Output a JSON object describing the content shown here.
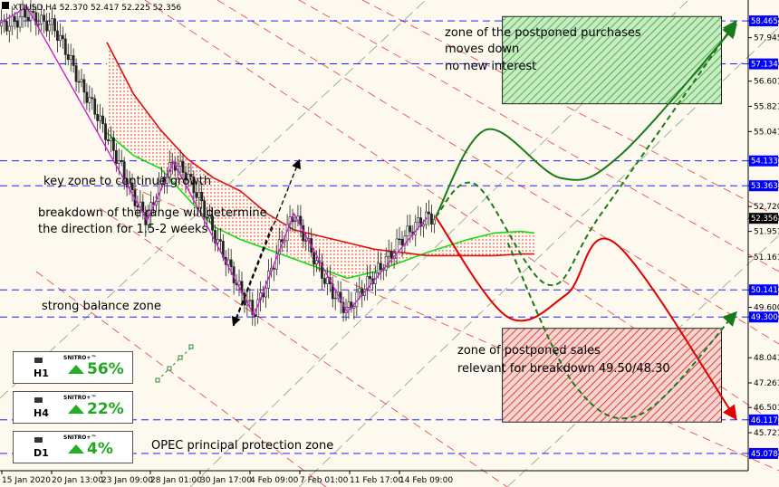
{
  "header": {
    "symbol_info": "XTIUSD,H4  52.370 52.417 52.225 52.356"
  },
  "chart_data": {
    "type": "candlestick",
    "symbol": "XTIUSD",
    "timeframe": "H4",
    "ohlc": {
      "open": 52.37,
      "high": 52.417,
      "low": 52.225,
      "close": 52.356
    },
    "current_price": 52.356,
    "ylim": [
      44.6,
      59.0
    ],
    "y_ticks": [
      "58.465",
      "57.945",
      "57.134",
      "56.601",
      "55.821",
      "55.041",
      "54.133",
      "53.363",
      "52.720",
      "52.356",
      "51.951",
      "51.161",
      "50.141",
      "49.600",
      "49.300",
      "48.041",
      "47.261",
      "46.501",
      "46.117",
      "45.721",
      "45.078"
    ],
    "highlighted_levels": [
      {
        "price": 58.465,
        "label": "58.465",
        "color": "#0000ff"
      },
      {
        "price": 57.134,
        "label": "57.134",
        "color": "#0000ff"
      },
      {
        "price": 54.133,
        "label": "54.133",
        "color": "#0000ff"
      },
      {
        "price": 53.363,
        "label": "53.363",
        "color": "#0000ff"
      },
      {
        "price": 52.356,
        "label": "52.356",
        "color": "#000000"
      },
      {
        "price": 50.141,
        "label": "50.141",
        "color": "#0000ff"
      },
      {
        "price": 49.3,
        "label": "49.300",
        "color": "#0000ff"
      },
      {
        "price": 46.117,
        "label": "46.117",
        "color": "#0000ff"
      },
      {
        "price": 45.078,
        "label": "45.078",
        "color": "#0000ff"
      }
    ],
    "x_ticks": [
      "15 Jan 2020",
      "20 Jan 13:00",
      "23 Jan 09:00",
      "28 Jan 01:00",
      "30 Jan 17:00",
      "4 Feb 09:00",
      "7 Feb 01:00",
      "11 Feb 17:00",
      "14 Feb 09:00"
    ],
    "price_path": [
      {
        "x": 0,
        "y": 58.3
      },
      {
        "x": 5,
        "y": 58.4
      },
      {
        "x": 10,
        "y": 58.7
      },
      {
        "x": 15,
        "y": 58.45
      },
      {
        "x": 20,
        "y": 58.3
      },
      {
        "x": 25,
        "y": 57.5
      },
      {
        "x": 30,
        "y": 56.5
      },
      {
        "x": 35,
        "y": 55.8
      },
      {
        "x": 40,
        "y": 54.9
      },
      {
        "x": 45,
        "y": 54.0
      },
      {
        "x": 50,
        "y": 53.0
      },
      {
        "x": 55,
        "y": 52.3
      },
      {
        "x": 60,
        "y": 53.4
      },
      {
        "x": 65,
        "y": 54.1
      },
      {
        "x": 70,
        "y": 53.7
      },
      {
        "x": 75,
        "y": 52.9
      },
      {
        "x": 80,
        "y": 51.9
      },
      {
        "x": 85,
        "y": 51.0
      },
      {
        "x": 90,
        "y": 50.1
      },
      {
        "x": 95,
        "y": 49.4
      },
      {
        "x": 100,
        "y": 50.4
      },
      {
        "x": 105,
        "y": 51.6
      },
      {
        "x": 110,
        "y": 52.5
      },
      {
        "x": 115,
        "y": 51.6
      },
      {
        "x": 120,
        "y": 50.7
      },
      {
        "x": 125,
        "y": 50.0
      },
      {
        "x": 130,
        "y": 49.5
      },
      {
        "x": 135,
        "y": 50.1
      },
      {
        "x": 140,
        "y": 50.6
      },
      {
        "x": 145,
        "y": 51.1
      },
      {
        "x": 150,
        "y": 51.7
      },
      {
        "x": 155,
        "y": 52.1
      },
      {
        "x": 160,
        "y": 52.4
      },
      {
        "x": 163,
        "y": 52.36
      }
    ],
    "zigzag": [
      {
        "x": 0,
        "y": 58.4
      },
      {
        "x": 10,
        "y": 58.9
      },
      {
        "x": 55,
        "y": 52.3
      },
      {
        "x": 65,
        "y": 54.1
      },
      {
        "x": 95,
        "y": 49.35
      },
      {
        "x": 110,
        "y": 52.5
      },
      {
        "x": 130,
        "y": 49.45
      },
      {
        "x": 160,
        "y": 52.4
      }
    ],
    "ichimoku_cloud": {
      "span_a": [
        {
          "x": 40,
          "y": 55.0
        },
        {
          "x": 50,
          "y": 54.3
        },
        {
          "x": 60,
          "y": 53.9
        },
        {
          "x": 70,
          "y": 53.0
        },
        {
          "x": 80,
          "y": 52.1
        },
        {
          "x": 90,
          "y": 51.7
        },
        {
          "x": 100,
          "y": 51.4
        },
        {
          "x": 110,
          "y": 51.1
        },
        {
          "x": 120,
          "y": 50.8
        },
        {
          "x": 130,
          "y": 50.5
        },
        {
          "x": 140,
          "y": 50.7
        },
        {
          "x": 150,
          "y": 51.0
        },
        {
          "x": 160,
          "y": 51.3
        },
        {
          "x": 175,
          "y": 51.7
        },
        {
          "x": 185,
          "y": 51.9
        },
        {
          "x": 195,
          "y": 51.95
        },
        {
          "x": 200,
          "y": 51.9
        }
      ],
      "span_b": [
        {
          "x": 40,
          "y": 57.8
        },
        {
          "x": 50,
          "y": 56.2
        },
        {
          "x": 60,
          "y": 55.1
        },
        {
          "x": 70,
          "y": 54.2
        },
        {
          "x": 80,
          "y": 53.6
        },
        {
          "x": 90,
          "y": 53.2
        },
        {
          "x": 100,
          "y": 52.5
        },
        {
          "x": 110,
          "y": 52.0
        },
        {
          "x": 120,
          "y": 51.8
        },
        {
          "x": 130,
          "y": 51.6
        },
        {
          "x": 140,
          "y": 51.4
        },
        {
          "x": 150,
          "y": 51.3
        },
        {
          "x": 160,
          "y": 51.2
        },
        {
          "x": 175,
          "y": 51.2
        },
        {
          "x": 185,
          "y": 51.2
        },
        {
          "x": 195,
          "y": 51.25
        },
        {
          "x": 200,
          "y": 51.25
        }
      ]
    },
    "forecast_paths": [
      {
        "name": "",
        "color": "#1a7a1a",
        "style": "solid",
        "points": [
          {
            "x": 163,
            "y": 52.4
          },
          {
            "x": 182,
            "y": 55.1
          },
          {
            "x": 210,
            "y": 53.6
          },
          {
            "x": 232,
            "y": 54.3
          },
          {
            "x": 275,
            "y": 58.3
          }
        ]
      },
      {
        "name": "",
        "color": "#1a7a1a",
        "style": "dashed",
        "points": [
          {
            "x": 163,
            "y": 52.4
          },
          {
            "x": 178,
            "y": 53.4
          },
          {
            "x": 205,
            "y": 50.3
          },
          {
            "x": 225,
            "y": 52.5
          },
          {
            "x": 275,
            "y": 58.4
          }
        ]
      },
      {
        "name": "",
        "color": "#e00000",
        "style": "solid",
        "points": [
          {
            "x": 163,
            "y": 52.4
          },
          {
            "x": 190,
            "y": 49.3
          },
          {
            "x": 212,
            "y": 50.0
          },
          {
            "x": 230,
            "y": 51.6
          },
          {
            "x": 275,
            "y": 46.2
          }
        ]
      },
      {
        "name": "",
        "color": "#1a7a1a",
        "style": "dashed",
        "points": [
          {
            "x": 190,
            "y": 51.6
          },
          {
            "x": 215,
            "y": 47.2
          },
          {
            "x": 240,
            "y": 46.3
          },
          {
            "x": 275,
            "y": 49.4
          }
        ]
      }
    ],
    "zones": [
      {
        "name": "purchases",
        "color": "#2aa52a",
        "x_from": 188,
        "x_to": 270,
        "y_from": 55.9,
        "y_to": 58.6
      },
      {
        "name": "sales",
        "color": "#e02020",
        "x_from": 188,
        "x_to": 270,
        "y_from": 46.05,
        "y_to": 48.95
      }
    ],
    "annotations": [
      "zone of the postponed purchases",
      "moves down",
      " no new interest",
      "key zone to continue growth",
      "breakdown of the range will determine",
      " the direction for 1.5-2 weeks",
      "strong balance zone",
      "zone of postponed sales",
      "relevant for breakdown 49.50/48.30",
      "OPEC principal protection zone"
    ],
    "grid": false
  },
  "widgets": [
    {
      "timeframe": "H1",
      "brand": "SNITRO+™",
      "percent": "56%"
    },
    {
      "timeframe": "H4",
      "brand": "SNITRO+™",
      "percent": "22%"
    },
    {
      "timeframe": "D1",
      "brand": "SNITRO+™",
      "percent": "4%"
    }
  ]
}
